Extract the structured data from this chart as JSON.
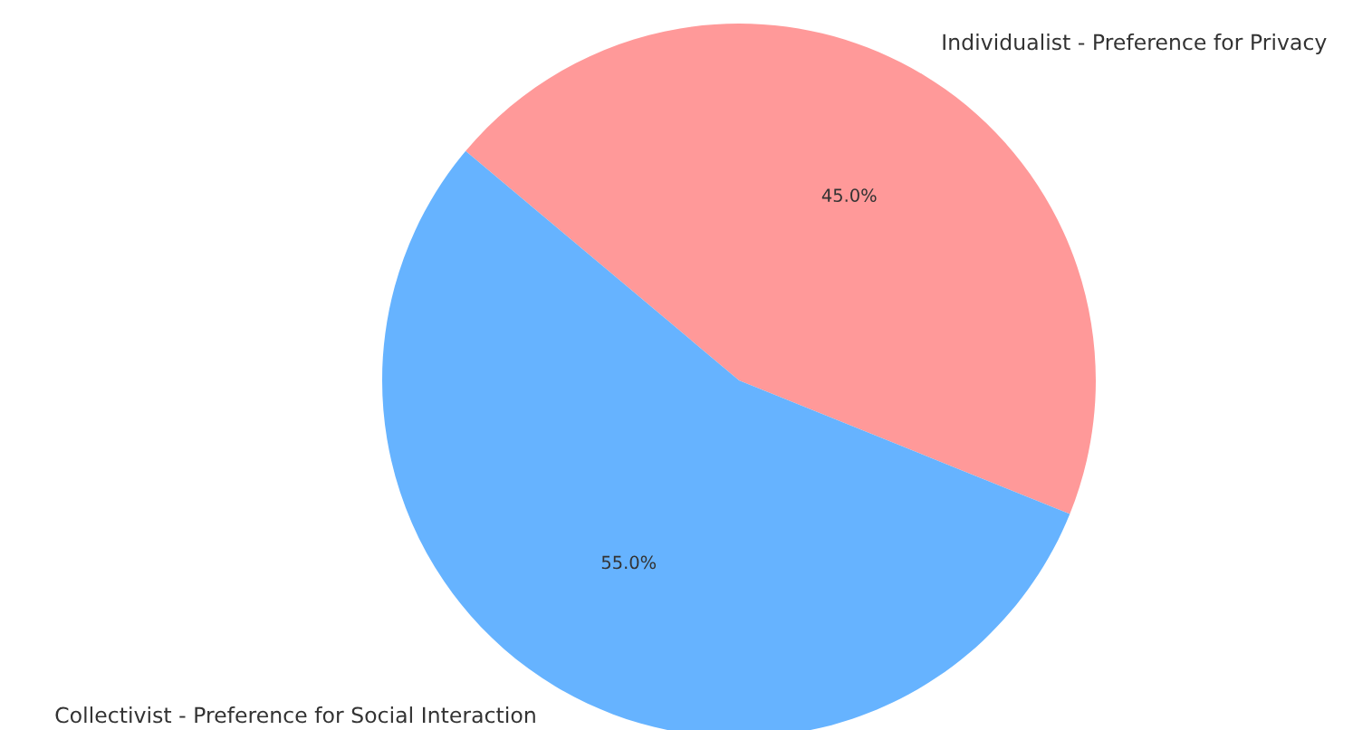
{
  "chart_data": {
    "type": "pie",
    "categories": [
      "Individualist - Preference for Privacy",
      "Collectivist - Preference for Social Interaction"
    ],
    "values": [
      45,
      55
    ],
    "colors": [
      "#ff9999",
      "#66b3ff"
    ],
    "value_labels": [
      "45.0%",
      "55.0%"
    ]
  }
}
